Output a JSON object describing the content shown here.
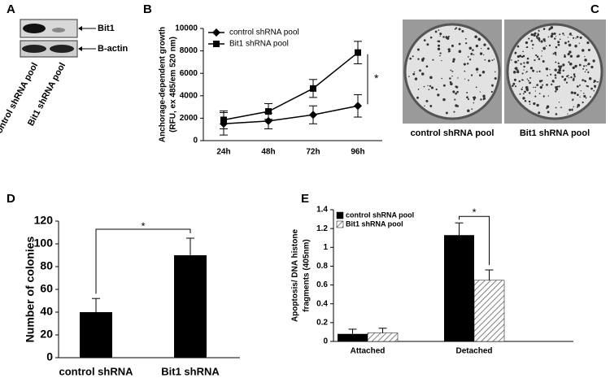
{
  "panel_labels": [
    "A",
    "B",
    "C",
    "D",
    "E"
  ],
  "blot": {
    "bands": [
      "Bit1",
      "B-actin"
    ],
    "lanes": [
      "Control shRNA pool",
      "Bit1 shRNA pool"
    ]
  },
  "plates": {
    "captions": [
      "control shRNA pool",
      "Bit1 shRNA pool"
    ]
  },
  "chart_data": [
    {
      "type": "line",
      "ylabel": [
        "Anchorage-dependent growth",
        "(RFU, ex 485/em 520 nm)"
      ],
      "categories": [
        "24h",
        "48h",
        "72h",
        "96h"
      ],
      "series": [
        {
          "name": "control shRNA pool",
          "color": "#000000",
          "marker": "diamond",
          "values": [
            1500,
            1750,
            2300,
            3100
          ],
          "errors": [
            1000,
            700,
            800,
            1000
          ]
        },
        {
          "name": "Bit1 shRNA pool",
          "color": "#000000",
          "marker": "square",
          "values": [
            1850,
            2600,
            4650,
            7850
          ],
          "errors": [
            800,
            700,
            800,
            1000
          ]
        }
      ],
      "ylim": [
        0,
        10000
      ],
      "yticks": [
        0,
        2000,
        4000,
        6000,
        8000,
        10000
      ],
      "annotation": "*"
    },
    {
      "type": "bar",
      "ylabel": [
        "Number of colonies"
      ],
      "categories": [
        "control shRNA",
        "Bit1 shRNA"
      ],
      "values": [
        40,
        90
      ],
      "errors": [
        12,
        15
      ],
      "color": "#000000",
      "ylim": [
        0,
        120
      ],
      "yticks": [
        0,
        20,
        40,
        60,
        80,
        100,
        120
      ],
      "annotation": "*"
    },
    {
      "type": "bar",
      "ylabel": [
        "Apoptosis/ DNA histone",
        "fragments (405nm)"
      ],
      "categories": [
        "Attached",
        "Detached"
      ],
      "series": [
        {
          "name": "control shRNA pool",
          "color": "#000000",
          "values": [
            0.08,
            1.13
          ],
          "errors": [
            0.05,
            0.13
          ]
        },
        {
          "name": "Bit1 shRNA pool",
          "color": "#555555",
          "hatch": true,
          "values": [
            0.09,
            0.65
          ],
          "errors": [
            0.05,
            0.11
          ]
        }
      ],
      "ylim": [
        0,
        1.4
      ],
      "yticks": [
        0,
        0.2,
        0.4,
        0.6,
        0.8,
        1,
        1.2,
        1.4
      ],
      "annotation": "*"
    }
  ]
}
